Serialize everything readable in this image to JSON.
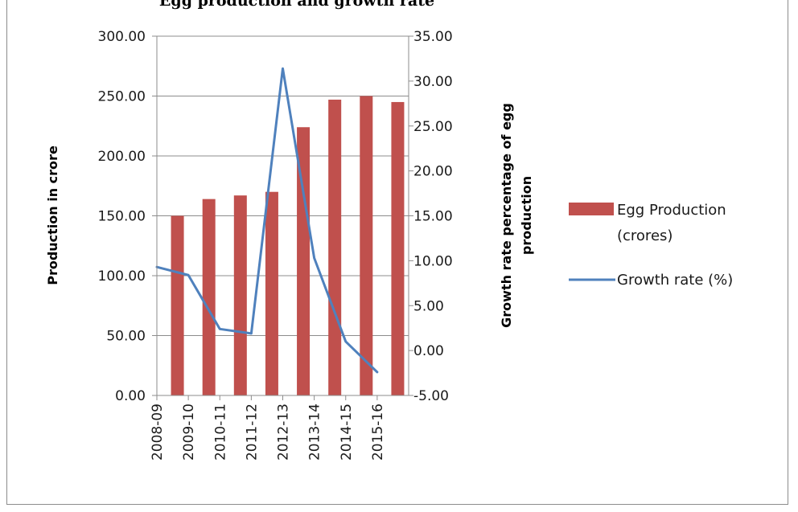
{
  "title": "Egg production and growth rate",
  "chart_data": {
    "type": "bar",
    "categories": [
      "2008-09",
      "2009-10",
      "2010-11",
      "2011-12",
      "2012-13",
      "2013-14",
      "2014-15",
      "2015-16"
    ],
    "series": [
      {
        "name": "Egg Production (crores)",
        "name_lines": [
          "Egg Production",
          "(crores)"
        ],
        "type": "bar",
        "axis": "left",
        "color": "#c0504d",
        "values": [
          150.0,
          164.0,
          167.0,
          170.0,
          224.0,
          247.0,
          250.0,
          245.0
        ]
      },
      {
        "name": "Growth rate (%)",
        "type": "line",
        "axis": "right",
        "color": "#4f81bd",
        "values": [
          9.3,
          8.4,
          2.4,
          1.9,
          31.4,
          10.3,
          1.0,
          -2.4
        ]
      }
    ],
    "ylabel": "Production in crore",
    "y2label_lines": [
      "Growth rate percentage of egg",
      "production"
    ],
    "ylim": [
      0,
      300
    ],
    "y2lim": [
      -5,
      35
    ],
    "yticks": [
      "0.00",
      "50.00",
      "100.00",
      "150.00",
      "200.00",
      "250.00",
      "300.00"
    ],
    "y2ticks": [
      "-5.00",
      "0.00",
      "5.00",
      "10.00",
      "15.00",
      "20.00",
      "25.00",
      "30.00",
      "35.00"
    ],
    "grid": true,
    "legend_position": "right"
  }
}
